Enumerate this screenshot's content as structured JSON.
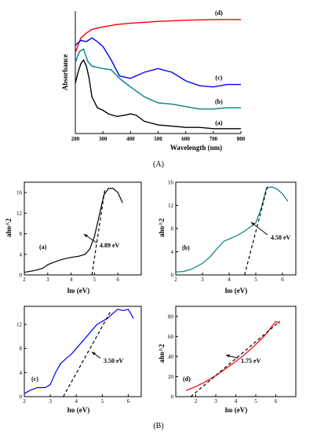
{
  "figure": {
    "caption_top": "(A)",
    "caption_bottom": "(B)"
  },
  "chart_data": [
    {
      "type": "line",
      "panel": "A",
      "xlabel": "Wavelength (nm)",
      "ylabel": "Absorbance",
      "xlim": [
        200,
        800
      ],
      "x_ticks": [
        200,
        300,
        400,
        500,
        600,
        700,
        800
      ],
      "y_ticks_shown": false,
      "series": [
        {
          "name": "(d)",
          "color": "#ff0000",
          "x": [
            200,
            220,
            240,
            260,
            300,
            350,
            400,
            500,
            600,
            700,
            800
          ],
          "y": [
            0.66,
            0.78,
            0.82,
            0.85,
            0.87,
            0.89,
            0.9,
            0.915,
            0.925,
            0.93,
            0.93
          ]
        },
        {
          "name": "(c)",
          "color": "#0000ff",
          "x": [
            200,
            220,
            240,
            260,
            280,
            300,
            330,
            360,
            400,
            450,
            500,
            550,
            600,
            650,
            700,
            750,
            800
          ],
          "y": [
            0.72,
            0.76,
            0.75,
            0.78,
            0.75,
            0.71,
            0.6,
            0.47,
            0.45,
            0.5,
            0.53,
            0.5,
            0.43,
            0.39,
            0.38,
            0.4,
            0.4
          ]
        },
        {
          "name": "(b)",
          "color": "#008080",
          "x": [
            200,
            215,
            230,
            245,
            260,
            280,
            300,
            330,
            360,
            400,
            450,
            500,
            550,
            600,
            650,
            700,
            750,
            800
          ],
          "y": [
            0.58,
            0.67,
            0.69,
            0.59,
            0.55,
            0.54,
            0.53,
            0.52,
            0.45,
            0.38,
            0.3,
            0.25,
            0.24,
            0.22,
            0.2,
            0.2,
            0.21,
            0.21
          ]
        },
        {
          "name": "(a)",
          "color": "#000000",
          "x": [
            200,
            210,
            220,
            230,
            240,
            250,
            260,
            280,
            300,
            320,
            350,
            380,
            400,
            420,
            450,
            500,
            550,
            600,
            650,
            700,
            750,
            800
          ],
          "y": [
            0.41,
            0.5,
            0.57,
            0.6,
            0.55,
            0.45,
            0.3,
            0.21,
            0.19,
            0.16,
            0.14,
            0.15,
            0.16,
            0.15,
            0.1,
            0.07,
            0.06,
            0.05,
            0.05,
            0.04,
            0.04,
            0.04
          ]
        }
      ]
    },
    {
      "type": "line",
      "panel": "a",
      "xlabel": "hυ (eV)",
      "ylabel": "ahυ^2",
      "xlim": [
        2,
        7
      ],
      "ylim": [
        0,
        18
      ],
      "x_ticks": [
        2,
        3,
        4,
        5,
        6
      ],
      "y_ticks": [
        0,
        4,
        8,
        12,
        16
      ],
      "series": [
        {
          "name": "(a)",
          "color": "#000000",
          "x": [
            2.0,
            2.5,
            2.8,
            3.0,
            3.3,
            3.6,
            4.0,
            4.3,
            4.6,
            4.8,
            5.0,
            5.2,
            5.4,
            5.6,
            5.8,
            6.0,
            6.2
          ],
          "y": [
            0.5,
            0.9,
            1.3,
            2.0,
            2.5,
            3.0,
            3.4,
            3.6,
            4.0,
            5.0,
            7.5,
            11.5,
            15.5,
            16.8,
            16.8,
            16.0,
            14.0
          ]
        }
      ],
      "tangent": {
        "x": [
          4.89,
          5.45
        ],
        "y": [
          0,
          16.8
        ]
      },
      "annotation": "4.89 eV"
    },
    {
      "type": "line",
      "panel": "b",
      "xlabel": "hυ (eV)",
      "ylabel": "ahυ^2",
      "xlim": [
        2,
        6.5
      ],
      "ylim": [
        0,
        16
      ],
      "x_ticks": [
        2,
        3,
        4,
        5,
        6
      ],
      "y_ticks": [
        0,
        4,
        8,
        12,
        16
      ],
      "series": [
        {
          "name": "(b)",
          "color": "#008080",
          "x": [
            2.0,
            2.3,
            2.6,
            3.0,
            3.3,
            3.6,
            3.8,
            4.0,
            4.3,
            4.6,
            4.8,
            5.0,
            5.2,
            5.4,
            5.6,
            5.8,
            6.0,
            6.2
          ],
          "y": [
            0.5,
            0.6,
            1.0,
            2.0,
            3.2,
            4.8,
            5.8,
            6.2,
            6.8,
            7.6,
            8.3,
            9.0,
            11.5,
            15.0,
            15.2,
            14.8,
            14.0,
            12.7
          ]
        }
      ],
      "tangent": {
        "x": [
          4.58,
          5.45
        ],
        "y": [
          0,
          15.5
        ]
      },
      "annotation": "4.58 eV"
    },
    {
      "type": "line",
      "panel": "c",
      "xlabel": "hυ (eV)",
      "ylabel": "",
      "xlim": [
        2,
        6.5
      ],
      "ylim": [
        0,
        15
      ],
      "x_ticks": [
        2,
        3,
        4,
        5,
        6
      ],
      "y_ticks": [
        0,
        4,
        8,
        12
      ],
      "series": [
        {
          "name": "(c)",
          "color": "#0000ff",
          "x": [
            2.0,
            2.2,
            2.5,
            2.8,
            3.0,
            3.2,
            3.4,
            3.6,
            3.8,
            4.0,
            4.3,
            4.6,
            4.8,
            5.0,
            5.2,
            5.4,
            5.6,
            5.8,
            6.0,
            6.2
          ],
          "y": [
            0.5,
            1.0,
            1.5,
            1.5,
            2.0,
            4.0,
            5.5,
            6.3,
            7.0,
            8.0,
            9.5,
            11.0,
            12.0,
            12.5,
            13.0,
            13.8,
            14.5,
            14.3,
            14.5,
            13.0
          ]
        }
      ],
      "tangent": {
        "x": [
          3.5,
          5.3
        ],
        "y": [
          0,
          14.0
        ]
      },
      "annotation": "3.50 eV"
    },
    {
      "type": "line",
      "panel": "d",
      "xlabel": "hυ (eV)",
      "ylabel": "ahυ^2",
      "xlim": [
        1,
        7
      ],
      "ylim": [
        0,
        90
      ],
      "x_ticks": [
        2,
        3,
        4,
        5,
        6
      ],
      "y_ticks": [
        0,
        20,
        40,
        60,
        80
      ],
      "series": [
        {
          "name": "(d)",
          "color": "#ff0000",
          "x": [
            1.5,
            2.0,
            2.5,
            3.0,
            3.5,
            4.0,
            4.5,
            5.0,
            5.5,
            5.8,
            6.0,
            6.2
          ],
          "y": [
            6,
            10,
            15,
            21,
            28,
            35,
            43,
            52,
            62,
            70,
            75,
            73
          ]
        }
      ],
      "tangent": {
        "x": [
          1.75,
          6.2
        ],
        "y": [
          0,
          75
        ]
      },
      "annotation": "1.75 eV"
    }
  ]
}
